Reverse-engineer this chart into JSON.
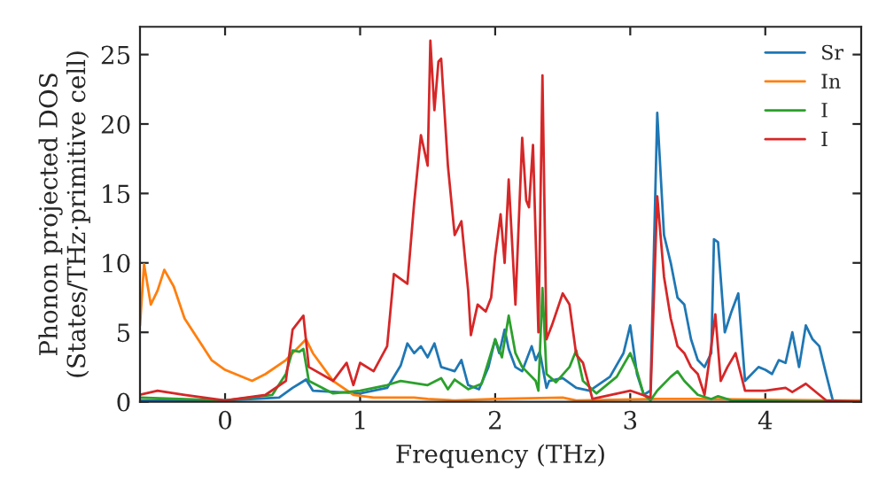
{
  "chart_data": {
    "type": "line",
    "xlabel": "Frequency (THz)",
    "ylabel": "Phonon projected DOS\n(States/THz·primitive cell)",
    "xlim": [
      -0.63,
      4.71
    ],
    "ylim": [
      0,
      27
    ],
    "xticks": [
      0,
      1,
      2,
      3,
      4
    ],
    "yticks": [
      0,
      5,
      10,
      15,
      20,
      25
    ],
    "grid": false,
    "legend": "top right",
    "series": [
      {
        "name": "Sr",
        "color": "#1f77b4",
        "x": [
          -0.63,
          0.0,
          0.4,
          0.5,
          0.55,
          0.6,
          0.65,
          1.0,
          1.2,
          1.3,
          1.35,
          1.4,
          1.45,
          1.5,
          1.55,
          1.6,
          1.7,
          1.75,
          1.8,
          1.88,
          1.95,
          2.0,
          2.03,
          2.07,
          2.1,
          2.15,
          2.2,
          2.27,
          2.3,
          2.33,
          2.38,
          2.4,
          2.5,
          2.6,
          2.7,
          2.85,
          2.95,
          3.0,
          3.05,
          3.1,
          3.15,
          3.2,
          3.25,
          3.3,
          3.35,
          3.4,
          3.45,
          3.5,
          3.55,
          3.6,
          3.62,
          3.65,
          3.7,
          3.75,
          3.8,
          3.85,
          3.95,
          4.0,
          4.05,
          4.1,
          4.15,
          4.2,
          4.25,
          4.3,
          4.35,
          4.4,
          4.45,
          4.5,
          4.71
        ],
        "values": [
          0.1,
          0.1,
          0.3,
          1,
          1.3,
          1.6,
          0.8,
          0.6,
          1,
          2.6,
          4.2,
          3.5,
          4,
          3.2,
          4.2,
          2.5,
          2.2,
          3,
          1.2,
          0.9,
          2.5,
          4.5,
          3.5,
          5.2,
          3.8,
          2.5,
          2.2,
          4,
          3,
          3.6,
          1,
          1.5,
          1.7,
          1,
          0.8,
          1.8,
          3.5,
          5.5,
          2,
          0.5,
          0.8,
          20.8,
          12,
          10,
          7.5,
          7,
          4.5,
          3,
          2.5,
          3.5,
          11.7,
          11.5,
          5,
          6.5,
          7.8,
          1.5,
          2.5,
          2.3,
          2,
          3,
          2.8,
          5,
          2.5,
          5.5,
          4.5,
          4,
          2,
          0.1,
          0
        ]
      },
      {
        "name": "In",
        "color": "#ff7f0e",
        "x": [
          -0.63,
          -0.6,
          -0.55,
          -0.5,
          -0.45,
          -0.38,
          -0.3,
          -0.2,
          -0.1,
          0.0,
          0.2,
          0.3,
          0.45,
          0.55,
          0.6,
          0.65,
          0.8,
          0.95,
          1.1,
          1.4,
          1.5,
          1.7,
          2.0,
          2.5,
          2.6,
          3.2,
          3.5,
          4.5,
          4.71
        ],
        "values": [
          5.5,
          9.9,
          7,
          8,
          9.5,
          8.3,
          6,
          4.5,
          3,
          2.3,
          1.5,
          2,
          3,
          4,
          4.5,
          3.5,
          1.5,
          0.5,
          0.3,
          0.3,
          0.2,
          0.1,
          0.2,
          0.3,
          0.1,
          0.2,
          0.2,
          0.1,
          0.1
        ]
      },
      {
        "name": "I",
        "color": "#2ca02c",
        "x": [
          -0.63,
          0.0,
          0.35,
          0.45,
          0.5,
          0.55,
          0.58,
          0.62,
          0.8,
          1.0,
          1.2,
          1.3,
          1.5,
          1.6,
          1.65,
          1.7,
          1.8,
          1.9,
          2.0,
          2.05,
          2.1,
          2.15,
          2.2,
          2.3,
          2.32,
          2.35,
          2.38,
          2.45,
          2.55,
          2.6,
          2.65,
          2.75,
          2.9,
          3.0,
          3.05,
          3.1,
          3.15,
          3.2,
          3.3,
          3.35,
          3.4,
          3.5,
          3.6,
          3.65,
          3.75,
          4.5,
          4.71
        ],
        "values": [
          0.3,
          0.1,
          0.5,
          2,
          3.7,
          3.6,
          3.8,
          1.5,
          0.6,
          0.8,
          1.2,
          1.5,
          1.2,
          1.7,
          0.9,
          1.6,
          0.9,
          1.3,
          4.5,
          3.2,
          6.2,
          3.5,
          2.5,
          1.5,
          0.8,
          8.2,
          2,
          1.4,
          2.5,
          3.7,
          1.5,
          0.6,
          1.8,
          3.5,
          2.2,
          0.5,
          0.1,
          0.8,
          1.8,
          2.2,
          1.5,
          0.5,
          0.2,
          0.4,
          0.1,
          0,
          0
        ]
      },
      {
        "name": "I",
        "color": "#d62728",
        "x": [
          -0.63,
          -0.5,
          -0.3,
          0.0,
          0.3,
          0.45,
          0.5,
          0.58,
          0.62,
          0.8,
          0.9,
          0.95,
          1.0,
          1.1,
          1.2,
          1.25,
          1.35,
          1.4,
          1.45,
          1.5,
          1.52,
          1.55,
          1.58,
          1.6,
          1.65,
          1.7,
          1.75,
          1.8,
          1.82,
          1.87,
          1.93,
          1.97,
          2.0,
          2.04,
          2.07,
          2.1,
          2.15,
          2.2,
          2.23,
          2.25,
          2.28,
          2.32,
          2.35,
          2.38,
          2.42,
          2.5,
          2.55,
          2.6,
          2.65,
          2.72,
          3.0,
          3.15,
          3.2,
          3.25,
          3.3,
          3.35,
          3.4,
          3.45,
          3.5,
          3.55,
          3.6,
          3.63,
          3.67,
          3.72,
          3.78,
          3.85,
          4.0,
          4.15,
          4.2,
          4.3,
          4.4,
          4.45,
          4.71
        ],
        "values": [
          0.5,
          0.8,
          0.5,
          0.1,
          0.5,
          1.5,
          5.2,
          6.2,
          2.5,
          1.5,
          2.8,
          1.2,
          2.8,
          2.2,
          4,
          9.2,
          8.5,
          14.3,
          19.2,
          17,
          26,
          21,
          24.5,
          24.7,
          17,
          12,
          13,
          8,
          4.8,
          7,
          6.5,
          7.5,
          10.5,
          13.5,
          10,
          16,
          7,
          19,
          14.5,
          14,
          18.5,
          5,
          23.5,
          4.5,
          5.5,
          7.8,
          7,
          3.4,
          2.8,
          0.2,
          0.8,
          0.3,
          14.8,
          9,
          6,
          4,
          3.5,
          2.5,
          2,
          0.5,
          4,
          6.3,
          1.5,
          2.5,
          3.5,
          0.8,
          0.8,
          1,
          0.7,
          1.3,
          0.5,
          0.1,
          0
        ]
      }
    ]
  }
}
